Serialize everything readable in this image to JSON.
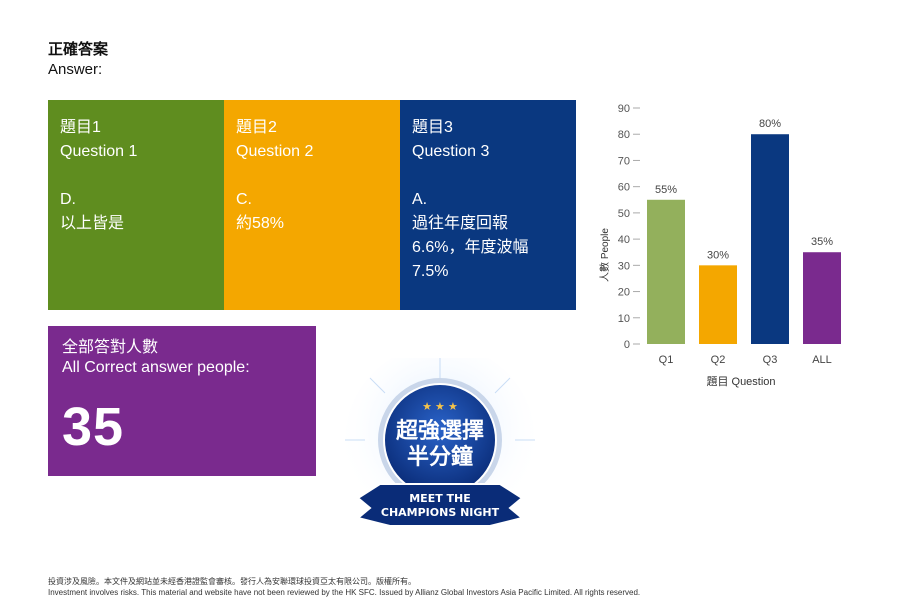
{
  "heading": {
    "zh": "正確答案",
    "en": "Answer:"
  },
  "questions": [
    {
      "title_zh": "題目1",
      "title_en": "Question 1",
      "answer_letter": "D.",
      "answer_lines": [
        "以上皆是"
      ]
    },
    {
      "title_zh": "題目2",
      "title_en": "Question 2",
      "answer_letter": "C.",
      "answer_lines": [
        "約58%"
      ]
    },
    {
      "title_zh": "題目3",
      "title_en": "Question 3",
      "answer_letter": "A.",
      "answer_lines": [
        "過往年度回報",
        "6.6%，年度波幅7.5%"
      ]
    }
  ],
  "all_correct": {
    "label_zh": "全部答對人數",
    "label_en": "All Correct answer people:",
    "count": "35"
  },
  "badge": {
    "line1": "超強選擇",
    "line2": "半分鐘",
    "ribbon1": "MEET THE",
    "ribbon2": "CHAMPIONS NIGHT"
  },
  "colors": {
    "q1": "#5f8d1f",
    "q2": "#f4a700",
    "q3": "#0a3880",
    "all": "#7a2a8e",
    "bar_q1": "#93b05c",
    "bar_q2": "#f4a700",
    "bar_q3": "#0a3880",
    "bar_all": "#7a2a8e"
  },
  "chart_data": {
    "type": "bar",
    "categories": [
      "Q1",
      "Q2",
      "Q3",
      "ALL"
    ],
    "values": [
      55,
      30,
      80,
      35
    ],
    "data_labels": [
      "55%",
      "30%",
      "80%",
      "35%"
    ],
    "ylabel": "人數 People",
    "xlabel": "題目 Question",
    "ylim": [
      0,
      90
    ],
    "yticks": [
      0,
      10,
      20,
      30,
      40,
      50,
      60,
      70,
      80,
      90
    ],
    "grid": false
  },
  "footer": {
    "zh": "投資涉及風險。本文件及網站並未經香港證監會審核。發行人為安聯環球投資亞太有限公司。版權所有。",
    "en": "Investment involves risks. This material and website have not been reviewed by the HK SFC. Issued by Allianz Global Investors Asia Pacific Limited. All rights reserved."
  }
}
